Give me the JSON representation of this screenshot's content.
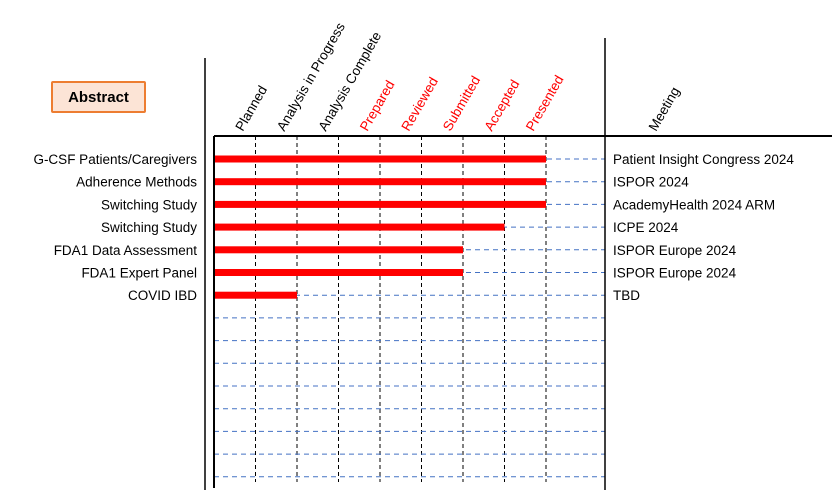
{
  "legend_box": {
    "label": "Abstract"
  },
  "meeting_header": "Meeting",
  "colors": {
    "bar": "#ff0000",
    "dashed_row": "#4472c4",
    "dashed_col": "#000000",
    "stage_black": "#000000",
    "stage_red": "#ff0000"
  },
  "chart_data": {
    "type": "bar",
    "orientation": "horizontal",
    "stages": [
      {
        "label": "Planned",
        "color": "#000000"
      },
      {
        "label": "Analysis in Progress",
        "color": "#000000"
      },
      {
        "label": "Analysis Complete",
        "color": "#000000"
      },
      {
        "label": "Prepared",
        "color": "#ff0000"
      },
      {
        "label": "Reviewed",
        "color": "#ff0000"
      },
      {
        "label": "Submitted",
        "color": "#ff0000"
      },
      {
        "label": "Accepted",
        "color": "#ff0000"
      },
      {
        "label": "Presented",
        "color": "#ff0000"
      }
    ],
    "rows": [
      {
        "label": "G-CSF Patients/Caregivers",
        "stage_reached": 8,
        "meeting": "Patient Insight Congress 2024"
      },
      {
        "label": "Adherence Methods",
        "stage_reached": 8,
        "meeting": "ISPOR 2024"
      },
      {
        "label": "Switching Study",
        "stage_reached": 8,
        "meeting": "AcademyHealth 2024 ARM"
      },
      {
        "label": "Switching Study",
        "stage_reached": 7,
        "meeting": "ICPE 2024"
      },
      {
        "label": "FDA1 Data Assessment",
        "stage_reached": 6,
        "meeting": "ISPOR Europe 2024"
      },
      {
        "label": "FDA1 Expert Panel",
        "stage_reached": 6,
        "meeting": "ISPOR Europe 2024"
      },
      {
        "label": "COVID IBD",
        "stage_reached": 2,
        "meeting": "TBD"
      }
    ],
    "empty_rows": 8
  }
}
